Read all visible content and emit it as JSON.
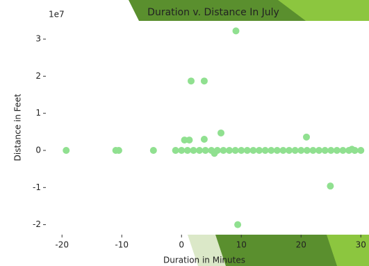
{
  "chart_data": {
    "type": "scatter",
    "title": "Duration v. Distance In July",
    "x_label": "Duration in Minutes",
    "y_label": "Distance in Feet",
    "y_offset_label": "1e7",
    "color": "#90e090",
    "xlim": [
      -22.7,
      30.9
    ],
    "xticks": [
      -20,
      -10,
      0,
      10,
      20,
      30
    ],
    "ylim": [
      -2.27,
      3.49
    ],
    "yticks": [
      -2,
      -1,
      0,
      1,
      2,
      3
    ],
    "x": [
      -19.3,
      -11,
      -10.5,
      -4.7,
      -1,
      0,
      1,
      2,
      3,
      4,
      5,
      6,
      7,
      8,
      9,
      10,
      11,
      12,
      13,
      14,
      15,
      16,
      17,
      18,
      19,
      20,
      21,
      22,
      23,
      24,
      25,
      26,
      27,
      28,
      29,
      30,
      0.5,
      1.3,
      1.6,
      3.8,
      3.8,
      5.5,
      6.6,
      9.1,
      9.4,
      20.9,
      24.9,
      28.5
    ],
    "y": [
      0,
      0,
      0,
      0,
      0,
      0,
      0,
      0,
      0,
      0,
      0,
      0,
      0,
      0,
      0,
      0,
      0,
      0,
      0,
      0,
      0,
      0,
      0,
      0,
      0,
      0,
      0,
      0,
      0,
      0,
      0,
      0,
      0,
      0,
      0,
      0,
      0.28,
      0.28,
      1.87,
      1.87,
      0.3,
      -0.08,
      0.47,
      3.22,
      -2.0,
      0.36,
      -0.96,
      0.03
    ]
  }
}
